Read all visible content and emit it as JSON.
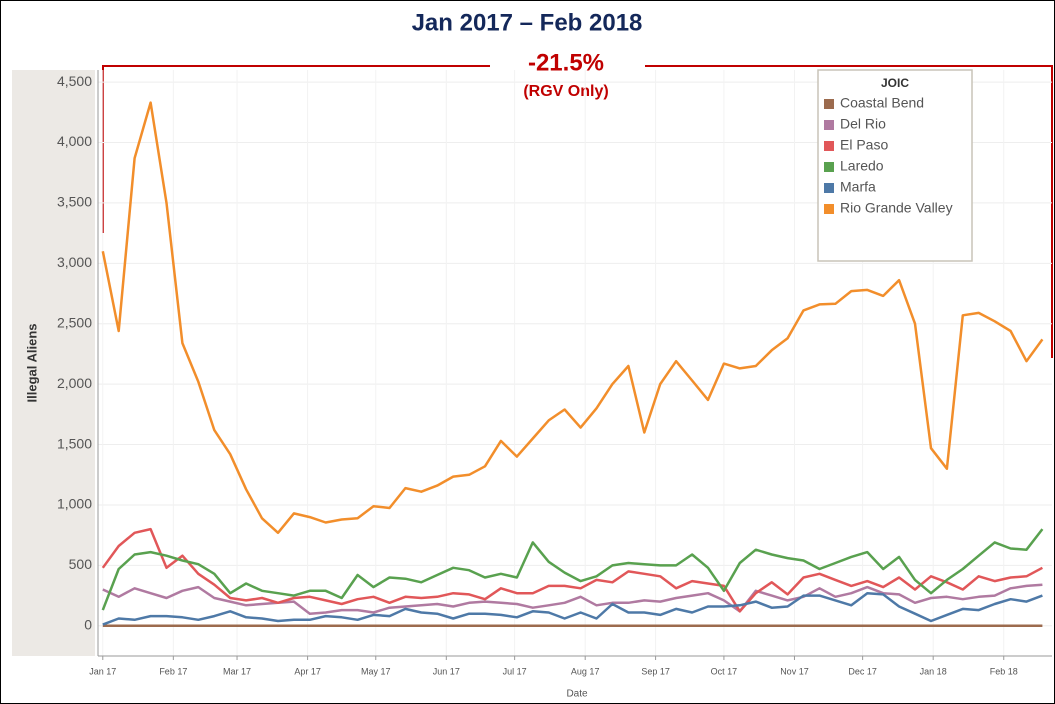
{
  "chart_data": {
    "type": "line",
    "title": "Jan 2017 – Feb 2018",
    "annotation": "-21.5%",
    "annotation_sub": "(RGV Only)",
    "x_label": "Date",
    "y_label": "Illegal Aliens",
    "legend_title": "JOIC",
    "legend": "top-right",
    "grid": true,
    "x": [
      0,
      1,
      2,
      3,
      4,
      5,
      6,
      7,
      8,
      9,
      10,
      11,
      12,
      13,
      14,
      15,
      16,
      17,
      18,
      19,
      20,
      21,
      22,
      23,
      24,
      25,
      26,
      27,
      28,
      29,
      30,
      31,
      32,
      33,
      34,
      35,
      36,
      37,
      38,
      39,
      40,
      41,
      42,
      43,
      44,
      45,
      46,
      47,
      48,
      49,
      50,
      51,
      52,
      53,
      54,
      55,
      56,
      57,
      58,
      59
    ],
    "xlim": [
      -0.3,
      59.6
    ],
    "xticks": [
      {
        "value": 0,
        "label": "Jan 17"
      },
      {
        "value": 4.43,
        "label": "Feb 17"
      },
      {
        "value": 8.43,
        "label": "Mar 17"
      },
      {
        "value": 12.86,
        "label": "Apr 17"
      },
      {
        "value": 17.14,
        "label": "May 17"
      },
      {
        "value": 21.57,
        "label": "Jun 17"
      },
      {
        "value": 25.86,
        "label": "Jul 17"
      },
      {
        "value": 30.29,
        "label": "Aug 17"
      },
      {
        "value": 34.71,
        "label": "Sep 17"
      },
      {
        "value": 39,
        "label": "Oct 17"
      },
      {
        "value": 43.43,
        "label": "Nov 17"
      },
      {
        "value": 47.71,
        "label": "Dec 17"
      },
      {
        "value": 52.14,
        "label": "Jan 18"
      },
      {
        "value": 56.57,
        "label": "Feb 18"
      }
    ],
    "ylim": [
      -250,
      4600
    ],
    "yticks": [
      0,
      500,
      {
        "value": 1000,
        "label": "1,000"
      },
      {
        "value": 1500,
        "label": "1,500"
      },
      {
        "value": 2000,
        "label": "2,000"
      },
      {
        "value": 2500,
        "label": "2,500"
      },
      {
        "value": 3000,
        "label": "3,000"
      },
      {
        "value": 3500,
        "label": "3,500"
      },
      {
        "value": 4000,
        "label": "4,000"
      },
      {
        "value": 4500,
        "label": "4,500"
      }
    ],
    "series": [
      {
        "name": "Coastal Bend",
        "color": "#9c6b4e",
        "values": [
          0,
          0,
          0,
          0,
          0,
          0,
          0,
          0,
          0,
          0,
          0,
          0,
          0,
          0,
          0,
          0,
          0,
          0,
          0,
          0,
          0,
          0,
          0,
          0,
          0,
          0,
          0,
          0,
          0,
          0,
          0,
          0,
          0,
          0,
          0,
          0,
          0,
          0,
          0,
          0,
          0,
          0,
          0,
          0,
          0,
          0,
          0,
          0,
          0,
          0,
          0,
          0,
          0,
          0,
          0,
          0,
          0,
          0,
          0,
          0
        ]
      },
      {
        "name": "Del Rio",
        "color": "#b07aa1",
        "values": [
          300,
          240,
          310,
          270,
          230,
          290,
          320,
          230,
          200,
          170,
          180,
          190,
          200,
          100,
          110,
          130,
          130,
          110,
          150,
          160,
          170,
          180,
          160,
          190,
          200,
          190,
          180,
          150,
          170,
          190,
          240,
          170,
          190,
          190,
          210,
          200,
          230,
          250,
          270,
          210,
          120,
          290,
          250,
          210,
          240,
          310,
          240,
          270,
          320,
          270,
          260,
          190,
          230,
          240,
          220,
          240,
          250,
          310,
          330,
          340
        ]
      },
      {
        "name": "El Paso",
        "color": "#e15759",
        "values": [
          480,
          660,
          770,
          800,
          480,
          580,
          430,
          340,
          230,
          210,
          230,
          190,
          230,
          240,
          210,
          180,
          220,
          240,
          190,
          240,
          230,
          240,
          270,
          260,
          220,
          310,
          270,
          270,
          330,
          330,
          310,
          380,
          360,
          450,
          430,
          410,
          310,
          370,
          350,
          330,
          120,
          270,
          360,
          260,
          400,
          430,
          380,
          330,
          370,
          320,
          400,
          300,
          410,
          360,
          300,
          410,
          370,
          400,
          410,
          480
        ]
      },
      {
        "name": "Laredo",
        "color": "#59a14f",
        "values": [
          130,
          470,
          590,
          610,
          580,
          540,
          510,
          430,
          270,
          350,
          290,
          270,
          250,
          290,
          290,
          230,
          420,
          320,
          400,
          390,
          360,
          420,
          480,
          460,
          400,
          430,
          400,
          690,
          530,
          440,
          370,
          410,
          500,
          520,
          510,
          500,
          500,
          590,
          480,
          290,
          520,
          630,
          590,
          560,
          540,
          470,
          520,
          570,
          610,
          470,
          570,
          380,
          270,
          380,
          470,
          580,
          690,
          640,
          630,
          800
        ]
      },
      {
        "name": "Marfa",
        "color": "#4e79a7",
        "values": [
          10,
          60,
          50,
          80,
          80,
          70,
          50,
          80,
          120,
          70,
          60,
          40,
          50,
          50,
          80,
          70,
          50,
          90,
          80,
          140,
          110,
          100,
          60,
          100,
          100,
          90,
          70,
          120,
          110,
          60,
          110,
          60,
          180,
          110,
          110,
          90,
          140,
          110,
          160,
          160,
          170,
          200,
          150,
          160,
          250,
          250,
          210,
          170,
          270,
          260,
          160,
          100,
          40,
          90,
          140,
          130,
          180,
          220,
          200,
          250
        ]
      },
      {
        "name": "Rio Grande Valley",
        "color": "#f28e2b",
        "values": [
          3100,
          2440,
          3870,
          4330,
          3500,
          2340,
          2020,
          1620,
          1420,
          1130,
          890,
          770,
          930,
          900,
          855,
          880,
          890,
          990,
          975,
          1140,
          1110,
          1160,
          1235,
          1250,
          1320,
          1530,
          1400,
          1550,
          1700,
          1790,
          1640,
          1800,
          2000,
          2150,
          1600,
          2000,
          2190,
          2030,
          1870,
          2170,
          2130,
          2150,
          2280,
          2380,
          2610,
          2660,
          2665,
          2770,
          2780,
          2730,
          2860,
          2500,
          1470,
          1300,
          2570,
          2590,
          2520,
          2440,
          2190,
          2370
        ]
      }
    ]
  }
}
